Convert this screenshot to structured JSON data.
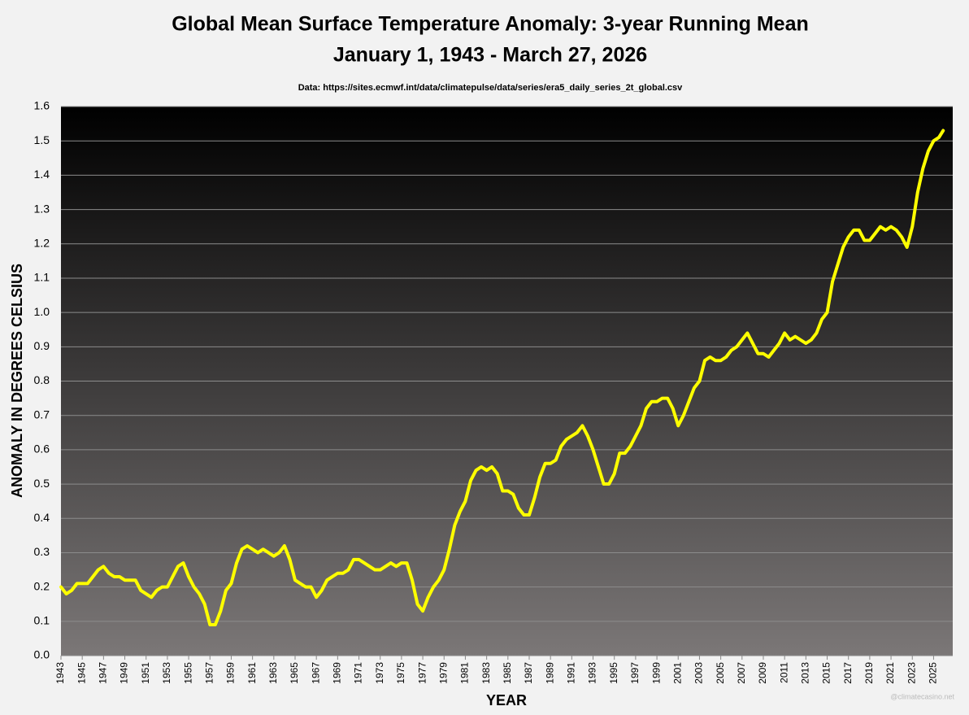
{
  "chart_data": {
    "type": "line",
    "title": "Global Mean Surface Temperature Anomaly: 3-year Running Mean",
    "subtitle": "January 1, 1943 - March 27, 2026",
    "source": "Data: https://sites.ecmwf.int/data/climatepulse/data/series/era5_daily_series_2t_global.csv",
    "y_label": "ANOMALY IN DEGREES CELSIUS",
    "x_label": "YEAR",
    "credit": "@climatecasino.net",
    "color": "#ffff00",
    "grid": true,
    "xlim": [
      1943,
      2026.8
    ],
    "ylim": [
      0,
      1.6
    ],
    "xticks": [
      1943,
      1945,
      1947,
      1949,
      1951,
      1953,
      1955,
      1957,
      1959,
      1961,
      1963,
      1965,
      1967,
      1969,
      1971,
      1973,
      1975,
      1977,
      1979,
      1981,
      1983,
      1985,
      1987,
      1989,
      1991,
      1993,
      1995,
      1997,
      1999,
      2001,
      2003,
      2005,
      2007,
      2009,
      2011,
      2013,
      2015,
      2017,
      2019,
      2021,
      2023,
      2025
    ],
    "yticks": [
      {
        "value": 0,
        "label": "0.0"
      },
      0.1,
      0.2,
      0.3,
      0.4,
      0.5,
      0.6,
      0.7,
      0.8,
      0.9,
      {
        "value": 1,
        "label": "1.0"
      },
      1.1,
      1.2,
      1.3,
      1.4,
      1.5,
      1.6
    ],
    "x": [
      1943,
      1943.5,
      1944,
      1944.5,
      1945,
      1945.5,
      1946,
      1946.5,
      1947,
      1947.5,
      1948,
      1948.5,
      1949,
      1949.5,
      1950,
      1950.5,
      1951,
      1951.5,
      1952,
      1952.5,
      1953,
      1953.5,
      1954,
      1954.5,
      1955,
      1955.5,
      1956,
      1956.5,
      1957,
      1957.5,
      1958,
      1958.5,
      1959,
      1959.5,
      1960,
      1960.5,
      1961,
      1961.5,
      1962,
      1962.5,
      1963,
      1963.5,
      1964,
      1964.5,
      1965,
      1965.5,
      1966,
      1966.5,
      1967,
      1967.5,
      1968,
      1968.5,
      1969,
      1969.5,
      1970,
      1970.5,
      1971,
      1971.5,
      1972,
      1972.5,
      1973,
      1973.5,
      1974,
      1974.5,
      1975,
      1975.5,
      1976,
      1976.5,
      1977,
      1977.5,
      1978,
      1978.5,
      1979,
      1979.5,
      1980,
      1980.5,
      1981,
      1981.5,
      1982,
      1982.5,
      1983,
      1983.5,
      1984,
      1984.5,
      1985,
      1985.5,
      1986,
      1986.5,
      1987,
      1987.5,
      1988,
      1988.5,
      1989,
      1989.5,
      1990,
      1990.5,
      1991,
      1991.5,
      1992,
      1992.5,
      1993,
      1993.5,
      1994,
      1994.5,
      1995,
      1995.5,
      1996,
      1996.5,
      1997,
      1997.5,
      1998,
      1998.5,
      1999,
      1999.5,
      2000,
      2000.5,
      2001,
      2001.5,
      2002,
      2002.5,
      2003,
      2003.5,
      2004,
      2004.5,
      2005,
      2005.5,
      2006,
      2006.5,
      2007,
      2007.5,
      2008,
      2008.5,
      2009,
      2009.5,
      2010,
      2010.5,
      2011,
      2011.5,
      2012,
      2012.5,
      2013,
      2013.5,
      2014,
      2014.5,
      2015,
      2015.5,
      2016,
      2016.5,
      2017,
      2017.5,
      2018,
      2018.5,
      2019,
      2019.5,
      2020,
      2020.5,
      2021,
      2021.5,
      2022,
      2022.5,
      2023,
      2023.5,
      2024,
      2024.5,
      2025,
      2025.5,
      2025.9
    ],
    "values": [
      0.2,
      0.18,
      0.19,
      0.21,
      0.21,
      0.21,
      0.23,
      0.25,
      0.26,
      0.24,
      0.23,
      0.23,
      0.22,
      0.22,
      0.22,
      0.19,
      0.18,
      0.17,
      0.19,
      0.2,
      0.2,
      0.23,
      0.26,
      0.27,
      0.23,
      0.2,
      0.18,
      0.15,
      0.09,
      0.09,
      0.13,
      0.19,
      0.21,
      0.27,
      0.31,
      0.32,
      0.31,
      0.3,
      0.31,
      0.3,
      0.29,
      0.3,
      0.32,
      0.28,
      0.22,
      0.21,
      0.2,
      0.2,
      0.17,
      0.19,
      0.22,
      0.23,
      0.24,
      0.24,
      0.25,
      0.28,
      0.28,
      0.27,
      0.26,
      0.25,
      0.25,
      0.26,
      0.27,
      0.26,
      0.27,
      0.27,
      0.22,
      0.15,
      0.13,
      0.17,
      0.2,
      0.22,
      0.25,
      0.31,
      0.38,
      0.42,
      0.45,
      0.51,
      0.54,
      0.55,
      0.54,
      0.55,
      0.53,
      0.48,
      0.48,
      0.47,
      0.43,
      0.41,
      0.41,
      0.46,
      0.52,
      0.56,
      0.56,
      0.57,
      0.61,
      0.63,
      0.64,
      0.65,
      0.67,
      0.64,
      0.6,
      0.55,
      0.5,
      0.5,
      0.53,
      0.59,
      0.59,
      0.61,
      0.64,
      0.67,
      0.72,
      0.74,
      0.74,
      0.75,
      0.75,
      0.72,
      0.67,
      0.7,
      0.74,
      0.78,
      0.8,
      0.86,
      0.87,
      0.86,
      0.86,
      0.87,
      0.89,
      0.9,
      0.92,
      0.94,
      0.91,
      0.88,
      0.88,
      0.87,
      0.89,
      0.91,
      0.94,
      0.92,
      0.93,
      0.92,
      0.91,
      0.92,
      0.94,
      0.98,
      1.0,
      1.09,
      1.14,
      1.19,
      1.22,
      1.24,
      1.24,
      1.21,
      1.21,
      1.23,
      1.25,
      1.24,
      1.25,
      1.24,
      1.22,
      1.19,
      1.25,
      1.35,
      1.42,
      1.47,
      1.5,
      1.51,
      1.53
    ]
  }
}
